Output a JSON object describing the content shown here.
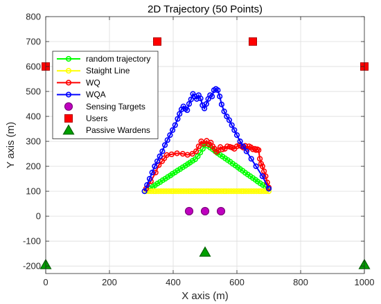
{
  "chart_data": {
    "type": "scatter",
    "title": "2D Trajectory (50 Points)",
    "xlabel": "X axis (m)",
    "ylabel": "Y axis (m)",
    "xlim": [
      0,
      1000
    ],
    "ylim": [
      -230,
      800
    ],
    "xticks": [
      0,
      200,
      400,
      600,
      800,
      1000
    ],
    "yticks": [
      -200,
      -100,
      0,
      100,
      200,
      300,
      400,
      500,
      600,
      700,
      800
    ],
    "grid": true,
    "legend_position": "top-left",
    "series": [
      {
        "name": "random trajectory",
        "kind": "line-marker",
        "color": "#00ff00",
        "marker": "circle",
        "x": [
          320,
          328,
          336,
          343,
          351,
          359,
          367,
          375,
          383,
          391,
          398,
          406,
          414,
          422,
          430,
          438,
          446,
          453,
          461,
          469,
          477,
          485,
          493,
          500,
          508,
          516,
          524,
          532,
          539,
          547,
          555,
          563,
          571,
          579,
          587,
          595,
          603,
          610,
          618,
          626,
          634,
          642,
          650,
          658,
          665,
          673,
          681,
          689,
          697,
          700
        ],
        "y": [
          105,
          111,
          118,
          124,
          131,
          137,
          144,
          150,
          157,
          163,
          170,
          176,
          183,
          189,
          196,
          202,
          209,
          215,
          222,
          228,
          240,
          255,
          270,
          290,
          282,
          275,
          268,
          260,
          253,
          246,
          239,
          232,
          225,
          218,
          210,
          203,
          196,
          189,
          182,
          174,
          167,
          160,
          153,
          146,
          139,
          132,
          125,
          118,
          112,
          110
        ]
      },
      {
        "name": "Staight Line",
        "kind": "line-marker",
        "color": "#ffff00",
        "marker": "circle",
        "x": [
          315,
          323,
          331,
          339,
          346,
          354,
          362,
          370,
          378,
          386,
          394,
          401,
          409,
          417,
          425,
          433,
          441,
          449,
          456,
          464,
          472,
          480,
          488,
          496,
          504,
          511,
          519,
          527,
          535,
          543,
          551,
          559,
          566,
          574,
          582,
          590,
          598,
          606,
          614,
          621,
          629,
          637,
          645,
          653,
          661,
          669,
          676,
          684,
          692,
          700
        ],
        "y": [
          100,
          100,
          100,
          100,
          100,
          100,
          100,
          100,
          100,
          100,
          100,
          100,
          100,
          100,
          100,
          100,
          100,
          100,
          100,
          100,
          100,
          100,
          100,
          100,
          100,
          100,
          100,
          100,
          100,
          100,
          100,
          100,
          100,
          100,
          100,
          100,
          100,
          100,
          100,
          100,
          100,
          100,
          100,
          100,
          100,
          100,
          100,
          100,
          100,
          100
        ]
      },
      {
        "name": "WQ",
        "kind": "line-marker",
        "color": "#ff0000",
        "marker": "circle",
        "x": [
          315,
          330,
          345,
          355,
          365,
          372,
          380,
          395,
          412,
          430,
          445,
          460,
          472,
          480,
          488,
          496,
          505,
          512,
          518,
          524,
          530,
          536,
          542,
          548,
          555,
          562,
          570,
          578,
          585,
          592,
          600,
          608,
          614,
          620,
          626,
          632,
          638,
          644,
          650,
          656,
          660,
          664,
          668,
          672,
          676,
          680,
          685,
          690,
          695,
          700
        ],
        "y": [
          110,
          140,
          175,
          205,
          220,
          232,
          245,
          248,
          252,
          250,
          246,
          250,
          260,
          280,
          300,
          290,
          302,
          288,
          295,
          280,
          270,
          258,
          264,
          277,
          268,
          270,
          280,
          278,
          275,
          270,
          280,
          285,
          280,
          275,
          282,
          270,
          280,
          276,
          268,
          270,
          265,
          268,
          265,
          230,
          210,
          200,
          180,
          160,
          135,
          115
        ]
      },
      {
        "name": "WQA",
        "kind": "line-marker",
        "color": "#0000ff",
        "marker": "circle",
        "x": [
          310,
          318,
          326,
          334,
          342,
          350,
          358,
          366,
          374,
          382,
          390,
          398,
          406,
          414,
          420,
          426,
          432,
          438,
          444,
          450,
          456,
          462,
          468,
          474,
          480,
          486,
          492,
          498,
          504,
          510,
          516,
          522,
          528,
          534,
          540,
          546,
          552,
          560,
          568,
          576,
          584,
          592,
          600,
          610,
          620,
          630,
          645,
          660,
          680,
          700
        ],
        "y": [
          100,
          125,
          150,
          175,
          200,
          220,
          240,
          260,
          285,
          305,
          325,
          345,
          365,
          390,
          410,
          428,
          440,
          430,
          425,
          450,
          468,
          490,
          480,
          470,
          485,
          472,
          445,
          432,
          450,
          470,
          485,
          480,
          505,
          510,
          505,
          480,
          448,
          420,
          400,
          385,
          365,
          345,
          325,
          300,
          280,
          260,
          230,
          200,
          160,
          110
        ]
      },
      {
        "name": "Sensing Targets",
        "kind": "marker",
        "color": "#bf00bf",
        "marker": "circle-large",
        "x": [
          450,
          500,
          550
        ],
        "y": [
          20,
          20,
          20
        ]
      },
      {
        "name": "Users",
        "kind": "marker",
        "color": "#ff0000",
        "marker": "square",
        "x": [
          0,
          350,
          650,
          1000
        ],
        "y": [
          600,
          700,
          700,
          600
        ]
      },
      {
        "name": "Passive Wardens",
        "kind": "marker",
        "color": "#00a000",
        "marker": "triangle",
        "x": [
          0,
          500,
          1000
        ],
        "y": [
          -195,
          -145,
          -195
        ]
      }
    ]
  }
}
